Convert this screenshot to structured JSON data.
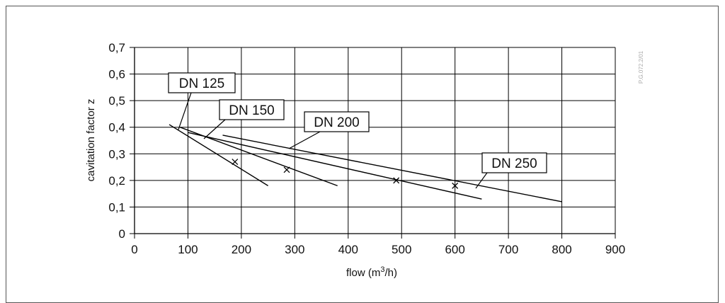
{
  "chart_data": {
    "type": "line",
    "title": "",
    "xlabel": "flow (m",
    "xlabel_sup": "3",
    "xlabel_tail": "/h)",
    "ylabel": "cavitation factor z",
    "xlim": [
      0,
      900
    ],
    "ylim": [
      0,
      0.7
    ],
    "x_ticks": [
      0,
      100,
      200,
      300,
      400,
      500,
      600,
      700,
      800,
      900
    ],
    "y_ticks": [
      0,
      0.1,
      0.2,
      0.3,
      0.4,
      0.5,
      0.6,
      0.7
    ],
    "y_tick_labels": [
      "0",
      "0,1",
      "0,2",
      "0,3",
      "0,4",
      "0,5",
      "0,6",
      "0,7"
    ],
    "grid": true,
    "series": [
      {
        "name": "DN 125",
        "x": [
          65,
          250
        ],
        "y": [
          0.41,
          0.18
        ],
        "marker": {
          "x": 188,
          "y": 0.27
        }
      },
      {
        "name": "DN 150",
        "x": [
          85,
          380
        ],
        "y": [
          0.4,
          0.18
        ],
        "marker": {
          "x": 285,
          "y": 0.24
        }
      },
      {
        "name": "DN 200",
        "x": [
          100,
          650
        ],
        "y": [
          0.38,
          0.13
        ],
        "marker": {
          "x": 490,
          "y": 0.2
        }
      },
      {
        "name": "DN 250",
        "x": [
          165,
          800
        ],
        "y": [
          0.37,
          0.12
        ],
        "marker": {
          "x": 600,
          "y": 0.18
        }
      }
    ],
    "reference_code": "P.G.072.2/01"
  }
}
